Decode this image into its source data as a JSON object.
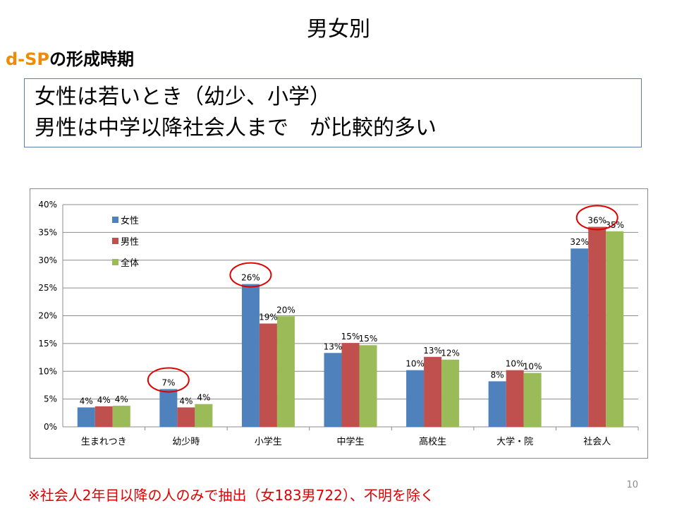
{
  "slide": {
    "title": "男女別",
    "subtitle_accent": "d-SP",
    "subtitle_rest": "の形成時期",
    "callout_line1": "女性は若いとき（幼少、小学）",
    "callout_line2": "男性は中学以降社会人まで　が比較的多い",
    "footnote": "※社会人2年目以降の人のみで抽出（女183男722）、不明を除く",
    "page_number": "10"
  },
  "chart_data": {
    "type": "bar",
    "categories": [
      "生まれつき",
      "幼少時",
      "小学生",
      "中学生",
      "高校生",
      "大学・院",
      "社会人"
    ],
    "series": [
      {
        "name": "女性",
        "color": "#4f81bd",
        "values": [
          3.5,
          6.8,
          25.7,
          13.3,
          10.2,
          8.2,
          32.1
        ],
        "labels": [
          "4%",
          "7%",
          "26%",
          "13%",
          "10%",
          "8%",
          "32%"
        ]
      },
      {
        "name": "男性",
        "color": "#c0504d",
        "values": [
          3.7,
          3.5,
          18.6,
          15.1,
          12.6,
          10.2,
          36.0
        ],
        "labels": [
          "4%",
          "4%",
          "19%",
          "15%",
          "13%",
          "10%",
          "36%"
        ]
      },
      {
        "name": "全体",
        "color": "#9bbb59",
        "values": [
          3.8,
          4.1,
          19.9,
          14.7,
          12.1,
          9.7,
          35.2
        ],
        "labels": [
          "4%",
          "4%",
          "20%",
          "15%",
          "12%",
          "10%",
          "35%"
        ]
      }
    ],
    "ylim": [
      0,
      40
    ],
    "yticks": [
      "0%",
      "5%",
      "10%",
      "15%",
      "20%",
      "25%",
      "30%",
      "35%",
      "40%"
    ],
    "grid": true,
    "legend_position": "top-left",
    "highlights": [
      {
        "category": "幼少時",
        "series": "女性"
      },
      {
        "category": "小学生",
        "series": "女性"
      },
      {
        "category": "社会人",
        "series": "男性"
      }
    ]
  }
}
